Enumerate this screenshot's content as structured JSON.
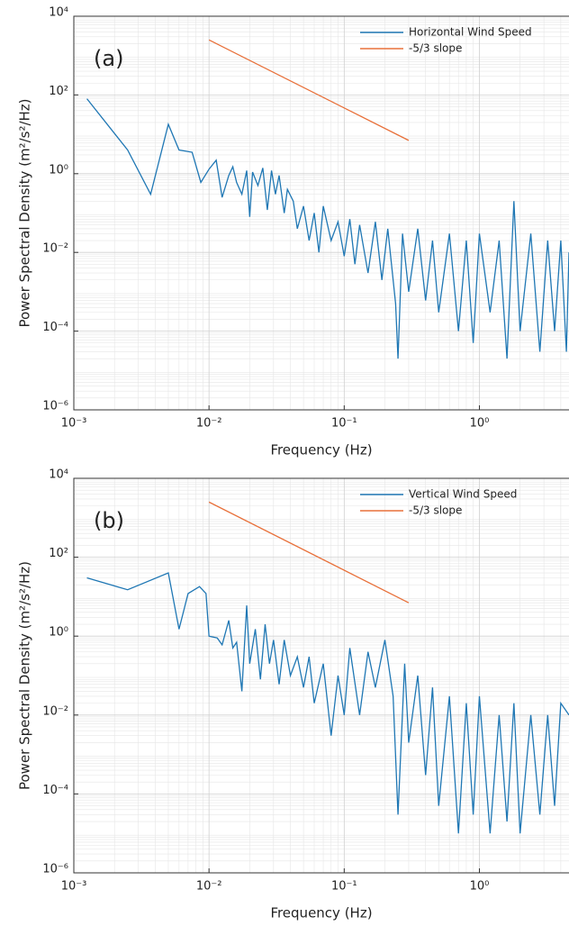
{
  "chart_data": [
    {
      "type": "line",
      "annotation": "(a)",
      "xlabel": "Frequency (Hz)",
      "ylabel": "Power Spectral Density (m²/s²/Hz)",
      "xscale": "log",
      "yscale": "log",
      "grid": true,
      "legend": "upper right",
      "xlim": [
        0.001,
        4.6
      ],
      "ylim": [
        1e-06,
        10000
      ],
      "xticks": [
        {
          "value": 0.001,
          "label": "10⁻³"
        },
        {
          "value": 0.01,
          "label": "10⁻²"
        },
        {
          "value": 0.1,
          "label": "10⁻¹"
        },
        {
          "value": 1,
          "label": "10⁰"
        }
      ],
      "yticks": [
        {
          "value": 1e-06,
          "label": "10⁻⁶"
        },
        {
          "value": 0.0001,
          "label": "10⁻⁴"
        },
        {
          "value": 0.01,
          "label": "10⁻²"
        },
        {
          "value": 1,
          "label": "10⁰"
        },
        {
          "value": 100,
          "label": "10²"
        },
        {
          "value": 10000,
          "label": "10⁴"
        }
      ],
      "series": [
        {
          "name": "Horizontal Wind Speed",
          "color": "#1f77b4",
          "x": [
            0.00125,
            0.0025,
            0.0037,
            0.005,
            0.006,
            0.0075,
            0.0087,
            0.01,
            0.0113,
            0.0125,
            0.014,
            0.015,
            0.016,
            0.0175,
            0.019,
            0.02,
            0.021,
            0.023,
            0.025,
            0.027,
            0.029,
            0.031,
            0.033,
            0.036,
            0.038,
            0.042,
            0.045,
            0.05,
            0.055,
            0.06,
            0.065,
            0.07,
            0.08,
            0.09,
            0.1,
            0.11,
            0.12,
            0.13,
            0.15,
            0.17,
            0.19,
            0.21,
            0.24,
            0.25,
            0.27,
            0.3,
            0.35,
            0.4,
            0.45,
            0.5,
            0.6,
            0.7,
            0.8,
            0.9,
            1.0,
            1.2,
            1.4,
            1.6,
            1.8,
            2.0,
            2.4,
            2.8,
            3.2,
            3.6,
            4.0,
            4.4,
            4.6
          ],
          "values": [
            80,
            4,
            0.3,
            18,
            4,
            3.5,
            0.6,
            1.3,
            2.2,
            0.25,
            0.9,
            1.5,
            0.6,
            0.3,
            1.2,
            0.08,
            1.1,
            0.5,
            1.4,
            0.12,
            1.2,
            0.3,
            0.9,
            0.1,
            0.4,
            0.2,
            0.04,
            0.15,
            0.02,
            0.1,
            0.01,
            0.15,
            0.02,
            0.06,
            0.008,
            0.07,
            0.005,
            0.05,
            0.003,
            0.06,
            0.002,
            0.04,
            0.0005,
            2e-05,
            0.03,
            0.001,
            0.04,
            0.0006,
            0.02,
            0.0003,
            0.03,
            0.0001,
            0.02,
            5e-05,
            0.03,
            0.0003,
            0.02,
            2e-05,
            0.2,
            0.0001,
            0.03,
            3e-05,
            0.02,
            0.0001,
            0.02,
            3e-05,
            0.01
          ]
        },
        {
          "name": "-5/3 slope",
          "color": "#e8703a",
          "x": [
            0.01,
            0.3
          ],
          "values": [
            2500,
            7
          ]
        }
      ]
    },
    {
      "type": "line",
      "annotation": "(b)",
      "xlabel": "Frequency (Hz)",
      "ylabel": "Power Spectral Density (m²/s²/Hz)",
      "xscale": "log",
      "yscale": "log",
      "grid": true,
      "legend": "upper right",
      "xlim": [
        0.001,
        4.6
      ],
      "ylim": [
        1e-06,
        10000
      ],
      "xticks": [
        {
          "value": 0.001,
          "label": "10⁻³"
        },
        {
          "value": 0.01,
          "label": "10⁻²"
        },
        {
          "value": 0.1,
          "label": "10⁻¹"
        },
        {
          "value": 1,
          "label": "10⁰"
        }
      ],
      "yticks": [
        {
          "value": 1e-06,
          "label": "10⁻⁶"
        },
        {
          "value": 0.0001,
          "label": "10⁻⁴"
        },
        {
          "value": 0.01,
          "label": "10⁻²"
        },
        {
          "value": 1,
          "label": "10⁰"
        },
        {
          "value": 100,
          "label": "10²"
        },
        {
          "value": 10000,
          "label": "10⁴"
        }
      ],
      "series": [
        {
          "name": "Vertical Wind Speed",
          "color": "#1f77b4",
          "x": [
            0.00125,
            0.0025,
            0.005,
            0.006,
            0.007,
            0.0085,
            0.0095,
            0.01,
            0.0115,
            0.0125,
            0.014,
            0.015,
            0.016,
            0.0175,
            0.019,
            0.02,
            0.022,
            0.024,
            0.026,
            0.028,
            0.03,
            0.033,
            0.036,
            0.04,
            0.045,
            0.05,
            0.055,
            0.06,
            0.07,
            0.08,
            0.09,
            0.1,
            0.11,
            0.13,
            0.15,
            0.17,
            0.2,
            0.23,
            0.25,
            0.28,
            0.3,
            0.35,
            0.4,
            0.45,
            0.5,
            0.6,
            0.7,
            0.8,
            0.9,
            1.0,
            1.2,
            1.4,
            1.6,
            1.8,
            2.0,
            2.4,
            2.8,
            3.2,
            3.6,
            4.0,
            4.6
          ],
          "values": [
            30,
            15,
            40,
            1.5,
            12,
            18,
            12,
            1,
            0.9,
            0.6,
            2.5,
            0.5,
            0.7,
            0.04,
            6,
            0.2,
            1.5,
            0.08,
            2,
            0.2,
            0.8,
            0.06,
            0.8,
            0.1,
            0.3,
            0.05,
            0.3,
            0.02,
            0.2,
            0.003,
            0.1,
            0.01,
            0.5,
            0.01,
            0.4,
            0.05,
            0.8,
            0.03,
            3e-05,
            0.2,
            0.002,
            0.1,
            0.0003,
            0.05,
            5e-05,
            0.03,
            1e-05,
            0.02,
            3e-05,
            0.03,
            1e-05,
            0.01,
            2e-05,
            0.02,
            1e-05,
            0.01,
            3e-05,
            0.01,
            5e-05,
            0.02,
            0.01
          ]
        },
        {
          "name": "-5/3 slope",
          "color": "#e8703a",
          "x": [
            0.01,
            0.3
          ],
          "values": [
            2500,
            7
          ]
        }
      ]
    }
  ]
}
